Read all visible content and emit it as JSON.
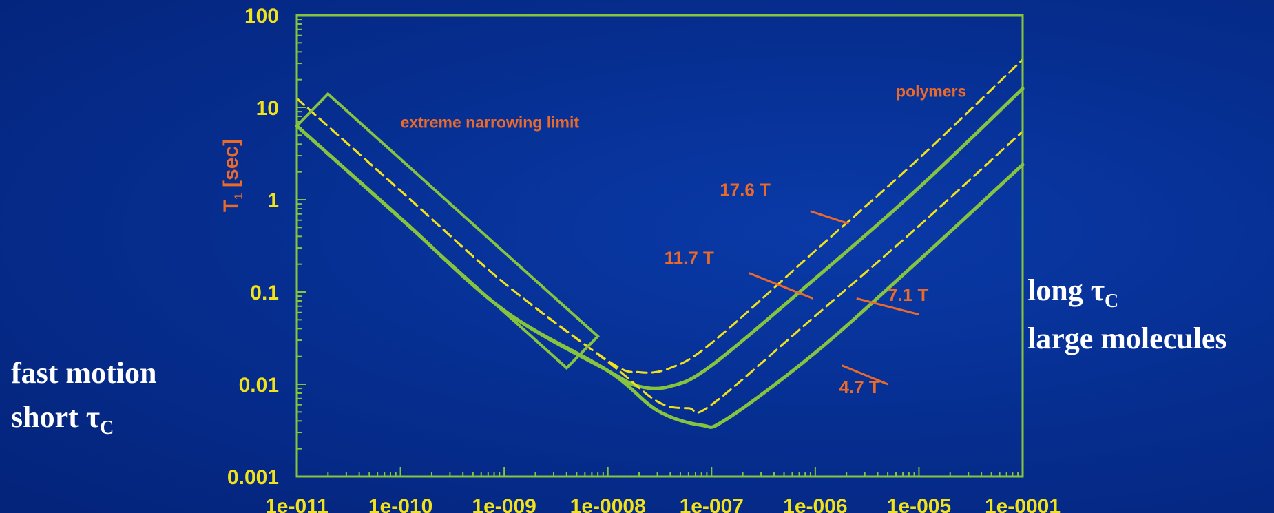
{
  "colors": {
    "background": "#0a3aa8",
    "axis": "#86c440",
    "tick_label": "#f2e21a",
    "annotation": "#ea6a2c",
    "solid_curve": "#86c440",
    "dashed_curve": "#f2e21a",
    "side_text": "#ffffff"
  },
  "left_text": {
    "line1": "fast motion",
    "line2": "short τ",
    "sub": "C"
  },
  "right_text": {
    "line1": "long τ",
    "sub": "C",
    "line2": "large molecules"
  },
  "chart_data": {
    "type": "line",
    "x_scale": "log",
    "y_scale": "log",
    "xlim": [
      1e-11,
      0.0001
    ],
    "ylim": [
      0.001,
      100
    ],
    "x_ticks": [
      "1e-011",
      "1e-010",
      "1e-009",
      "1e-0008",
      "1e-007",
      "1e-006",
      "1e-005",
      "1e-0001"
    ],
    "y_ticks": [
      "100",
      "10",
      "1",
      "0.1",
      "0.01",
      "0.001"
    ],
    "ylabel": "T",
    "ylabel_sub": "1",
    "ylabel_unit": "[sec]",
    "grid": false,
    "series": [
      {
        "name": "17.6 T",
        "style": "dashed",
        "color": "#f2e21a",
        "x": [
          1e-11,
          1e-10,
          1e-09,
          1e-08,
          2e-08,
          4e-08,
          1e-07,
          1e-06,
          1e-05,
          0.0001
        ],
        "y": [
          12.5,
          1.25,
          0.125,
          0.018,
          0.0135,
          0.015,
          0.028,
          0.28,
          2.8,
          33
        ]
      },
      {
        "name": "11.7 T",
        "style": "solid",
        "color": "#86c440",
        "x": [
          1e-11,
          1e-10,
          1e-09,
          1e-08,
          2e-08,
          4e-08,
          1e-07,
          1e-06,
          1e-05,
          0.0001
        ],
        "y": [
          6.3,
          0.63,
          0.063,
          0.014,
          0.0095,
          0.0095,
          0.016,
          0.14,
          1.35,
          16
        ]
      },
      {
        "name": "7.1 T",
        "style": "dashed",
        "color": "#f2e21a",
        "x": [
          1e-11,
          1e-10,
          1e-09,
          1e-08,
          3e-08,
          6e-08,
          1e-07,
          1e-06,
          1e-05,
          0.0001
        ],
        "y": [
          12.5,
          1.25,
          0.125,
          0.0175,
          0.0065,
          0.0055,
          0.006,
          0.055,
          0.52,
          5.5
        ]
      },
      {
        "name": "4.7 T",
        "style": "solid",
        "color": "#86c440",
        "x": [
          1e-11,
          1e-10,
          1e-09,
          1e-08,
          3e-08,
          8e-08,
          1.4e-07,
          1e-06,
          1e-05,
          0.0001
        ],
        "y": [
          6.3,
          0.63,
          0.063,
          0.014,
          0.0052,
          0.0036,
          0.0042,
          0.022,
          0.22,
          2.4
        ]
      }
    ],
    "annotations": [
      {
        "text": "extreme narrowing limit",
        "x": 1e-10,
        "y": 6
      },
      {
        "text": "polymers",
        "x": 6e-06,
        "y": 13
      },
      {
        "text": "17.6 T",
        "x": 1.2e-07,
        "y": 1.1
      },
      {
        "text": "11.7 T",
        "x": 3.5e-08,
        "y": 0.2
      },
      {
        "text": "7.1 T",
        "x": 5e-06,
        "y": 0.08
      },
      {
        "text": "4.7 T",
        "x": 1.7e-06,
        "y": 0.008
      }
    ],
    "highlight_box": {
      "label": "extreme narrowing limit region",
      "corners": [
        [
          1e-11,
          6.3
        ],
        [
          2e-11,
          14
        ],
        [
          8e-09,
          0.033
        ],
        [
          4e-09,
          0.015
        ]
      ]
    }
  }
}
